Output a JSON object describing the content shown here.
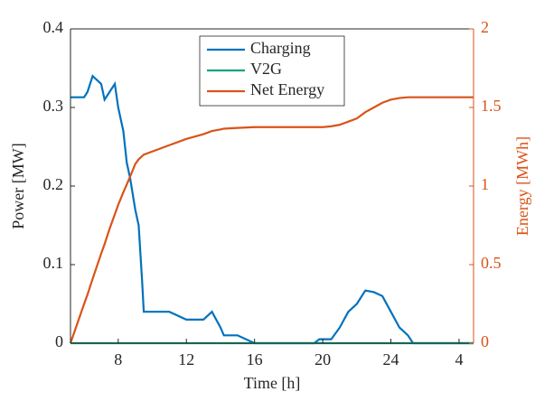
{
  "chart_data": {
    "type": "line",
    "xlabel": "Time [h]",
    "ylabel": "Power [MW]",
    "y2label": "Energy [MWh]",
    "x": [
      5.2,
      6,
      6.2,
      6.5,
      7,
      7.2,
      7.5,
      7.8,
      8,
      8.3,
      8.5,
      8.7,
      9,
      9.2,
      9.4,
      9.5,
      10,
      11,
      12,
      13,
      13.5,
      14,
      14.2,
      15,
      16,
      19.5,
      19.8,
      20,
      20.5,
      21,
      21.5,
      22,
      22.5,
      23,
      23.5,
      24,
      24.5,
      25,
      25.3,
      28.85
    ],
    "series": [
      {
        "name": "Charging",
        "color": "#0072bd",
        "values": [
          0.313,
          0.313,
          0.32,
          0.34,
          0.33,
          0.31,
          0.32,
          0.33,
          0.3,
          0.27,
          0.23,
          0.21,
          0.17,
          0.15,
          0.08,
          0.04,
          0.04,
          0.04,
          0.03,
          0.03,
          0.04,
          0.02,
          0.01,
          0.01,
          0,
          0,
          0.005,
          0.005,
          0.005,
          0.02,
          0.04,
          0.05,
          0.067,
          0.065,
          0.06,
          0.04,
          0.02,
          0.01,
          0,
          0
        ]
      },
      {
        "name": "V2G",
        "color": "#12a37f",
        "values": [
          0,
          0,
          0,
          0,
          0,
          0,
          0,
          0,
          0,
          0,
          0,
          0,
          0,
          0,
          0,
          0,
          0,
          0,
          0,
          0,
          0,
          0,
          0,
          0,
          0,
          0,
          0,
          0,
          0,
          0,
          0,
          0,
          0,
          0,
          0,
          0,
          0,
          0,
          0,
          0
        ]
      },
      {
        "name": "Net Energy",
        "color": "#d95319",
        "axis": "y2",
        "values": [
          0,
          0.25,
          0.31,
          0.41,
          0.57,
          0.63,
          0.73,
          0.82,
          0.88,
          0.96,
          1.01,
          1.06,
          1.14,
          1.17,
          1.19,
          1.2,
          1.22,
          1.26,
          1.3,
          1.33,
          1.35,
          1.36,
          1.365,
          1.37,
          1.375,
          1.375,
          1.375,
          1.375,
          1.38,
          1.39,
          1.41,
          1.43,
          1.47,
          1.5,
          1.53,
          1.55,
          1.56,
          1.565,
          1.565,
          1.565
        ]
      }
    ],
    "xlim": [
      5.2,
      28.85
    ],
    "xticks": [
      8,
      12,
      16,
      20,
      24,
      {
        "value": 28,
        "label": "4"
      }
    ],
    "ylim": [
      0,
      0.4
    ],
    "yticks": [
      0,
      0.1,
      0.2,
      0.3,
      0.4
    ],
    "y2lim": [
      0,
      2
    ],
    "y2ticks": [
      0,
      0.5,
      1,
      1.5,
      2
    ],
    "y2color": "#d95319",
    "legend": "north",
    "grid": false
  }
}
